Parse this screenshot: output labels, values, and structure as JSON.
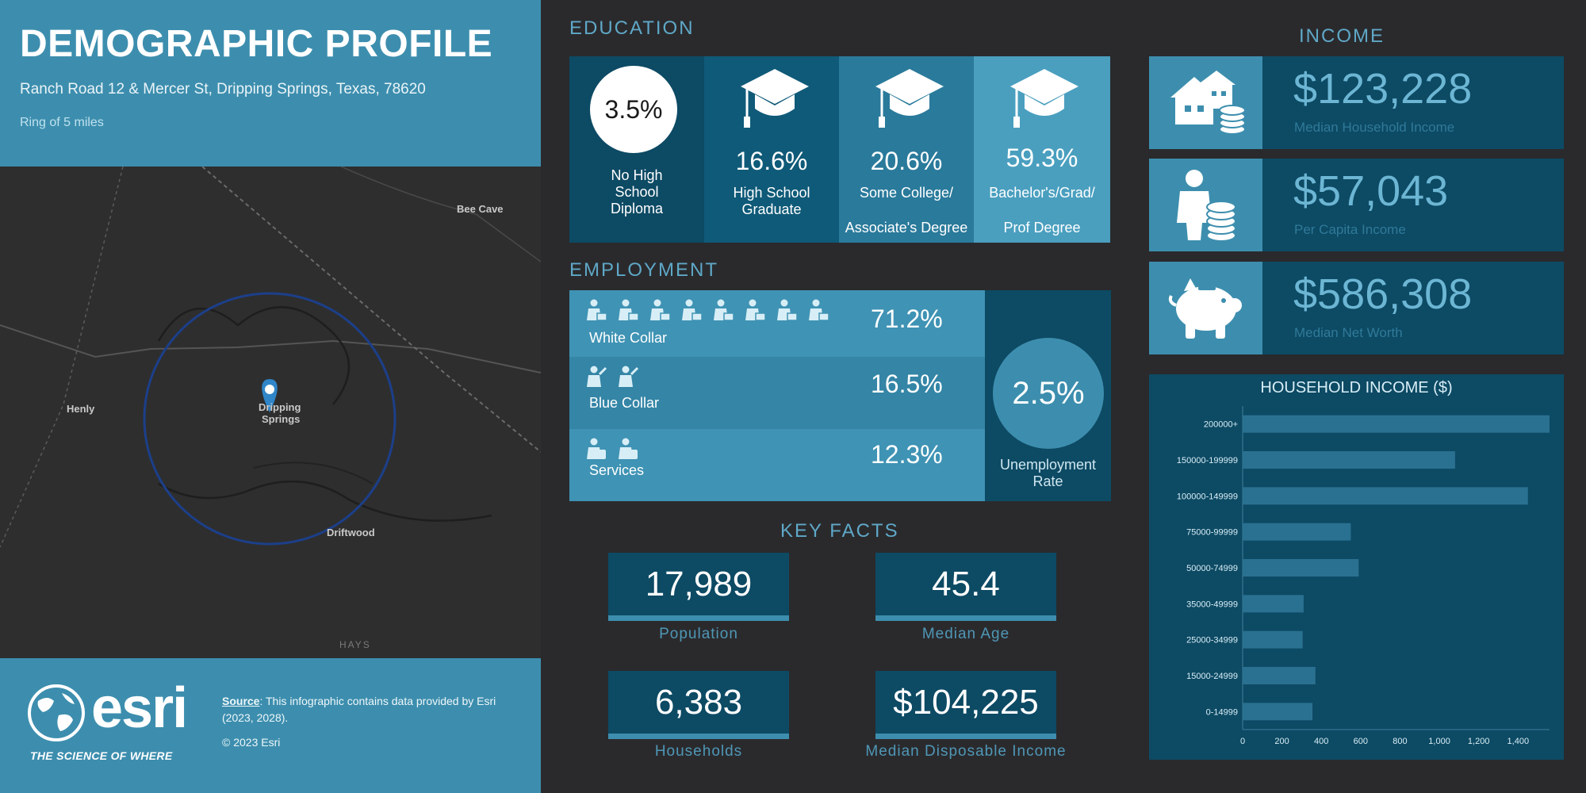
{
  "header": {
    "title": "DEMOGRAPHIC PROFILE",
    "address": "Ranch Road 12 & Mercer St, Dripping Springs, Texas, 78620",
    "ring": "Ring of 5 miles"
  },
  "map": {
    "labels": {
      "bee_cave": "Bee Cave",
      "henly": "Henly",
      "dripping": "Dripping",
      "springs": "Springs",
      "driftwood": "Driftwood",
      "hays": "HAYS"
    },
    "ring_color": "#1c3f8a",
    "pin_color": "#2f86c8"
  },
  "footer": {
    "logo_text": "esri",
    "tagline": "THE SCIENCE OF WHERE",
    "source_label": "Source",
    "source_text": ": This infographic contains data provided by Esri (2023, 2028).",
    "copyright": "© 2023 Esri"
  },
  "education": {
    "title": "EDUCATION",
    "items": [
      {
        "pct": "3.5%",
        "label": "No High School Diploma",
        "color": "#0d4a64",
        "icon": "circle"
      },
      {
        "pct": "16.6%",
        "label": "High School Graduate",
        "color": "#0f5a78",
        "icon": "graduation-cap-icon"
      },
      {
        "pct": "20.6%",
        "label_1": "Some College/",
        "label_2": "Associate's Degree",
        "color": "#2a7a9b",
        "icon": "graduation-cap-icon"
      },
      {
        "pct": "59.3%",
        "label_1": "Bachelor's/Grad/",
        "label_2": "Prof Degree",
        "color": "#4a9fbf",
        "icon": "graduation-cap-icon"
      }
    ]
  },
  "employment": {
    "title": "EMPLOYMENT",
    "rows": [
      {
        "label": "White Collar",
        "pct": "71.2%",
        "icons": 8,
        "icon": "office-worker-icon"
      },
      {
        "label": "Blue Collar",
        "pct": "16.5%",
        "icons": 2,
        "icon": "manual-worker-icon"
      },
      {
        "label": "Services",
        "pct": "12.3%",
        "icons": 2,
        "icon": "service-worker-icon"
      }
    ],
    "unemployment_pct": "2.5%",
    "unemployment_label_1": "Unemployment",
    "unemployment_label_2": "Rate"
  },
  "key_facts": {
    "title": "KEY FACTS",
    "items": [
      {
        "value": "17,989",
        "label": "Population"
      },
      {
        "value": "45.4",
        "label": "Median Age"
      },
      {
        "value": "6,383",
        "label": "Households"
      },
      {
        "value": "$104,225",
        "label": "Median Disposable Income"
      }
    ]
  },
  "income": {
    "title": "INCOME",
    "items": [
      {
        "value": "$123,228",
        "label": "Median Household Income",
        "icon": "house-coins-icon"
      },
      {
        "value": "$57,043",
        "label": "Per Capita Income",
        "icon": "person-coins-icon"
      },
      {
        "value": "$586,308",
        "label": "Median Net Worth",
        "icon": "piggy-bank-icon"
      }
    ]
  },
  "chart_data": {
    "type": "bar",
    "orientation": "horizontal",
    "title": "HOUSEHOLD INCOME ($)",
    "categories": [
      "200000+",
      "150000-199999",
      "100000-149999",
      "75000-99999",
      "50000-74999",
      "35000-49999",
      "25000-34999",
      "15000-24999",
      "0-14999"
    ],
    "values": [
      1560,
      1080,
      1450,
      550,
      590,
      310,
      305,
      370,
      355
    ],
    "xlim": [
      0,
      1560
    ],
    "xticks": [
      "0",
      "200",
      "400",
      "600",
      "800",
      "1,000",
      "1,200",
      "1,400"
    ],
    "bar_color": "#2a7191"
  },
  "colors": {
    "dark_bg": "#2a2a2d",
    "panel": "#0d4a64",
    "accent": "#3d8eae",
    "title_blue": "#5fa8c7"
  }
}
